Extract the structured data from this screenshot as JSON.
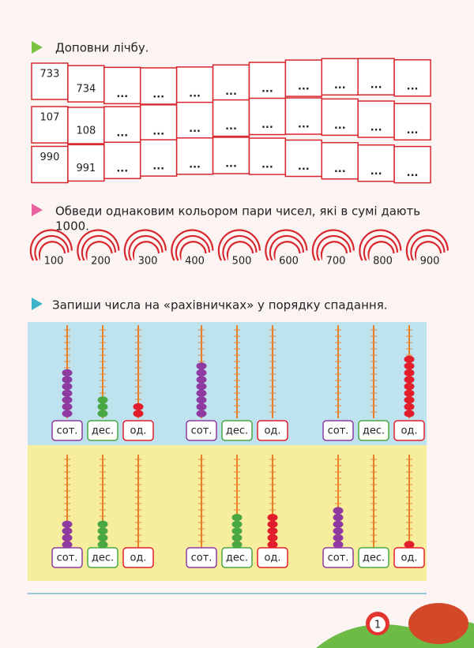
{
  "exercise1": {
    "instruction": "Доповни лічбу.",
    "rows": [
      [
        "733",
        "734",
        "...",
        "...",
        "...",
        "...",
        "...",
        "...",
        "...",
        "...",
        "..."
      ],
      [
        "107",
        "108",
        "...",
        "...",
        "...",
        "...",
        "...",
        "...",
        "...",
        "...",
        "..."
      ],
      [
        "990",
        "991",
        "...",
        "...",
        "...",
        "...",
        "...",
        "...",
        "...",
        "...",
        "..."
      ]
    ]
  },
  "exercise2": {
    "instruction_lines": [
      "Обведи однаковим кольором пари чисел, які в сумі дають",
      "1000."
    ],
    "numbers": [
      "100",
      "200",
      "300",
      "400",
      "500",
      "600",
      "700",
      "800",
      "900"
    ]
  },
  "exercise3": {
    "instruction": "Запиши числа на «рахівничках» у порядку спадання.",
    "abaci": [
      {
        "beads": [
          7,
          3,
          2
        ],
        "labels": [
          "сот.",
          "дес.",
          "од."
        ]
      },
      {
        "beads": [
          8,
          0,
          0
        ],
        "labels": [
          "сот.",
          "дес.",
          "од."
        ]
      },
      {
        "beads": [
          0,
          0,
          9
        ],
        "labels": [
          "сот.",
          "дес.",
          "од."
        ]
      },
      {
        "beads": [
          4,
          4,
          0
        ],
        "labels": [
          "сот.",
          "дес.",
          "од."
        ]
      },
      {
        "beads": [
          0,
          5,
          5
        ],
        "labels": [
          "сот.",
          "дес.",
          "од."
        ]
      },
      {
        "beads": [
          6,
          0,
          1
        ],
        "labels": [
          "сот.",
          "дес.",
          "од."
        ]
      }
    ]
  },
  "page_number": "1"
}
